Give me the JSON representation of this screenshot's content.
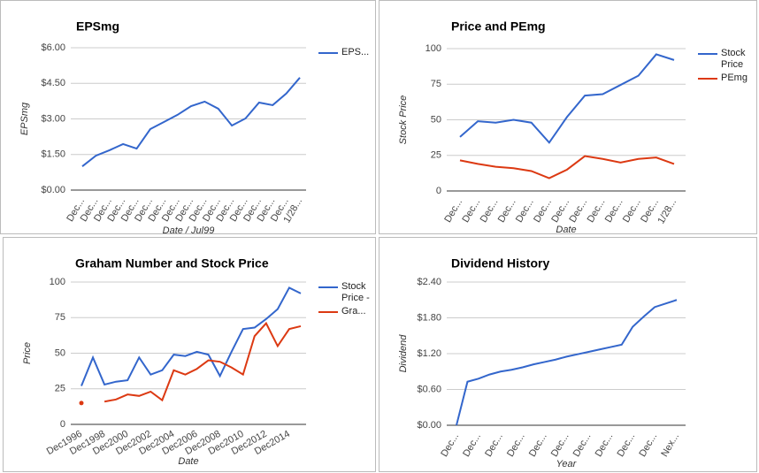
{
  "chart_data": [
    {
      "type": "line",
      "title": "EPSmg",
      "y_label": "EPSmg",
      "x_label": "Date / Jul99",
      "categories": [
        "Dec...",
        "Dec...",
        "Dec...",
        "Dec...",
        "Dec...",
        "Dec...",
        "Dec...",
        "Dec...",
        "Dec...",
        "Dec...",
        "Dec...",
        "Dec...",
        "Dec...",
        "Dec...",
        "Dec...",
        "Dec...",
        "1/28..."
      ],
      "series": [
        {
          "name": "EPS...",
          "color": "#3366cc",
          "values": [
            1.0,
            1.45,
            1.68,
            1.94,
            1.75,
            2.57,
            2.87,
            3.17,
            3.54,
            3.73,
            3.43,
            2.72,
            3.02,
            3.69,
            3.58,
            4.07,
            4.74
          ]
        }
      ],
      "ylim": [
        0,
        6
      ],
      "yticks": [
        {
          "value": 0,
          "label": "$0.00"
        },
        {
          "value": 1.5,
          "label": "$1.50"
        },
        {
          "value": 3,
          "label": "$3.00"
        },
        {
          "value": 4.5,
          "label": "$4.50"
        },
        {
          "value": 6,
          "label": "$6.00"
        }
      ],
      "grid": true
    },
    {
      "type": "line",
      "title": "Price and PEmg",
      "y_label": "Stock Price",
      "x_label": "Date",
      "categories": [
        "Dec...",
        "Dec...",
        "Dec...",
        "Dec...",
        "Dec...",
        "Dec...",
        "Dec...",
        "Dec...",
        "Dec...",
        "Dec...",
        "Dec...",
        "Dec...",
        "1/28..."
      ],
      "series": [
        {
          "name": "Stock Price",
          "color": "#3366cc",
          "values": [
            38,
            49,
            48,
            50,
            48,
            34,
            52,
            67,
            68,
            74.5,
            81,
            96,
            92
          ]
        },
        {
          "name": "PEmg",
          "color": "#dc3912",
          "values": [
            21.5,
            19,
            17,
            16,
            14,
            9,
            15,
            24.5,
            22.5,
            20,
            22.5,
            23.5,
            19
          ]
        }
      ],
      "ylim": [
        0,
        100
      ],
      "yticks": [
        0,
        25,
        50,
        75,
        100
      ],
      "grid": true
    },
    {
      "type": "line",
      "title": "Graham Number and Stock Price",
      "y_label": "Price",
      "x_label": "Date",
      "categories": [
        "Dec1996",
        null,
        "Dec1998",
        null,
        "Dec2000",
        null,
        "Dec2002",
        null,
        "Dec2004",
        null,
        "Dec2006",
        null,
        "Dec2008",
        null,
        "Dec2010",
        null,
        "Dec2012",
        null,
        "Dec2014",
        null
      ],
      "series": [
        {
          "name": "Stock Price -",
          "color": "#3366cc",
          "values": [
            27,
            47,
            28,
            30,
            31,
            47,
            35,
            38,
            49,
            48,
            51,
            49,
            34,
            51,
            67,
            68,
            74,
            81,
            96,
            92
          ]
        },
        {
          "name": "Gra...",
          "color": "#dc3912",
          "values": [
            15,
            null,
            16,
            17.5,
            21,
            20,
            23,
            17,
            38,
            35,
            39,
            45,
            44,
            40,
            35,
            62,
            71,
            55,
            67,
            69
          ]
        }
      ],
      "ylim": [
        0,
        100
      ],
      "yticks": [
        0,
        25,
        50,
        75,
        100
      ],
      "grid": true
    },
    {
      "type": "line",
      "title": "Dividend History",
      "y_label": "Dividend",
      "x_label": "Year",
      "categories": [
        "Dec...",
        null,
        "Dec...",
        null,
        "Dec...",
        null,
        "Dec...",
        null,
        "Dec...",
        null,
        "Dec...",
        null,
        "Dec...",
        null,
        "Dec...",
        null,
        "Dec...",
        null,
        "Dec...",
        null,
        "Nex..."
      ],
      "series": [
        {
          "color": "#3366cc",
          "values": [
            0,
            0.73,
            0.78,
            0.85,
            0.9,
            0.93,
            0.97,
            1.02,
            1.06,
            1.1,
            1.15,
            1.19,
            1.23,
            1.27,
            1.31,
            1.35,
            1.65,
            1.82,
            1.98,
            2.04,
            2.1
          ]
        }
      ],
      "ylim": [
        0,
        2.4
      ],
      "yticks": [
        {
          "value": 0,
          "label": "$0.00"
        },
        {
          "value": 0.6,
          "label": "$0.60"
        },
        {
          "value": 1.2,
          "label": "$1.20"
        },
        {
          "value": 1.8,
          "label": "$1.80"
        },
        {
          "value": 2.4,
          "label": "$2.40"
        }
      ],
      "grid": true
    }
  ]
}
